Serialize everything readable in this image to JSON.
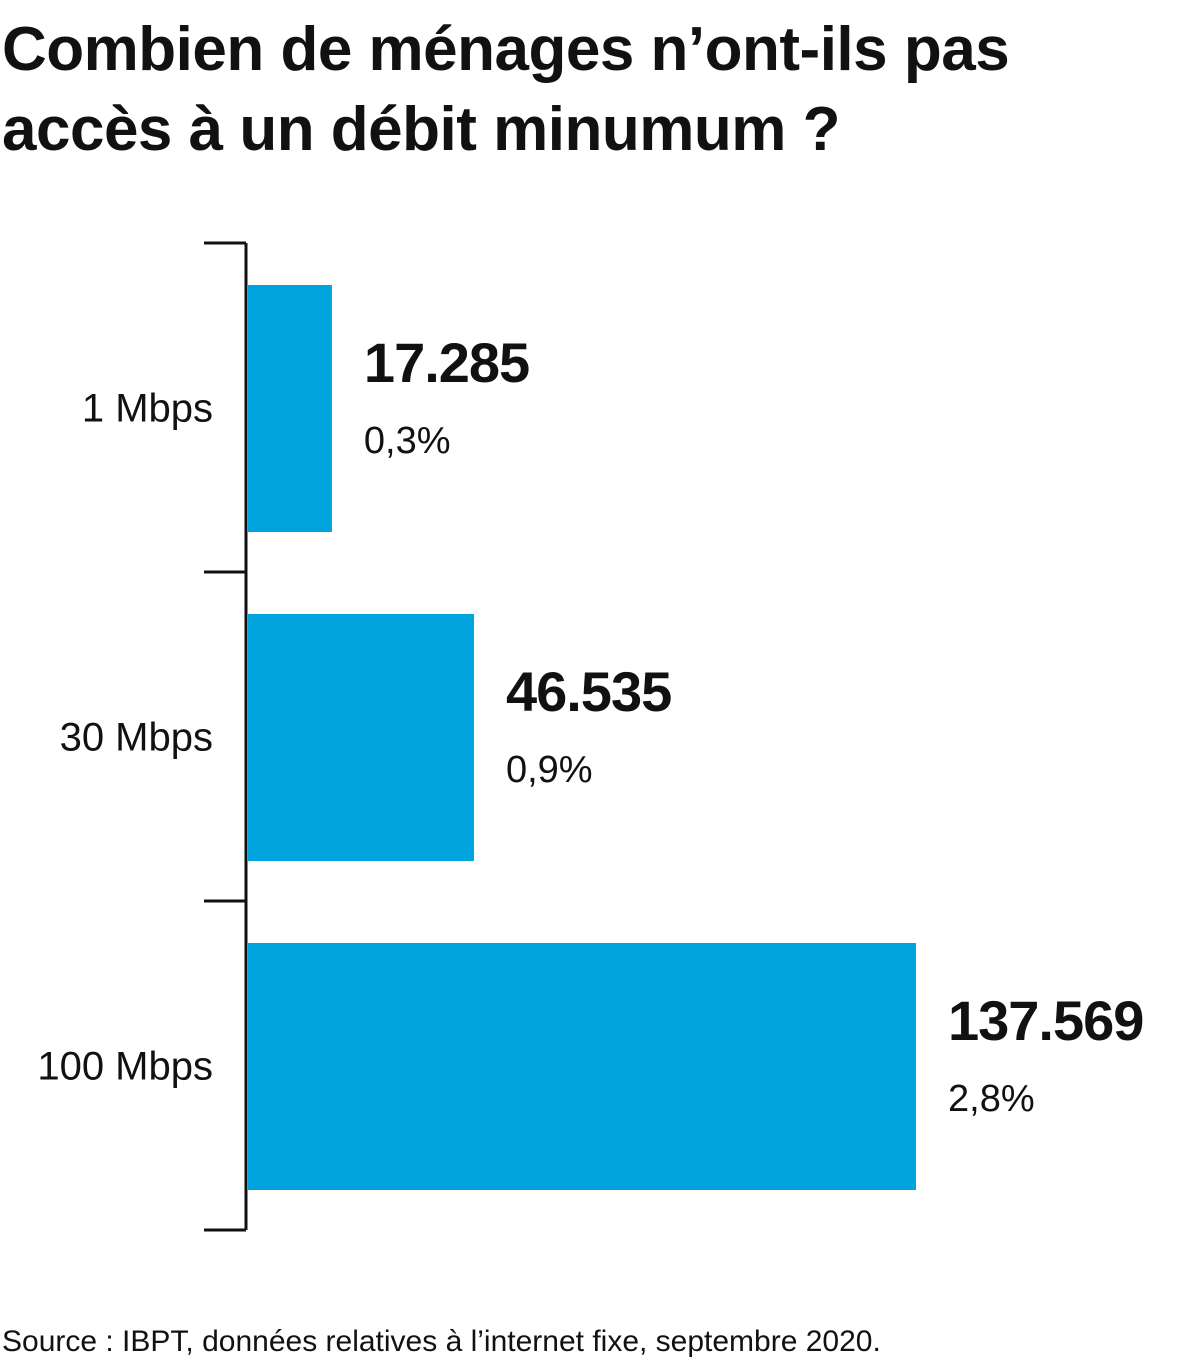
{
  "title": "Combien de ménages n’ont-ils pas accès à un débit minumum ?",
  "source": "Source : IBPT, données relatives à l’internet fixe, septembre 2020.",
  "chart_data": {
    "type": "bar",
    "orientation": "horizontal",
    "categories": [
      "1 Mbps",
      "30 Mbps",
      "100 Mbps"
    ],
    "values": [
      17285,
      46535,
      137569
    ],
    "value_labels": [
      "17.285",
      "46.535",
      "137.569"
    ],
    "percent_labels": [
      "0,3%",
      "0,9%",
      "2,8%"
    ],
    "title": "Combien de ménages n’ont-ils pas accès à un débit minumum ?",
    "xlabel": "",
    "ylabel": "",
    "grid": false,
    "legend": "none",
    "colors": {
      "bar": "#00a3dc",
      "axis": "#111111",
      "text": "#111111"
    }
  }
}
